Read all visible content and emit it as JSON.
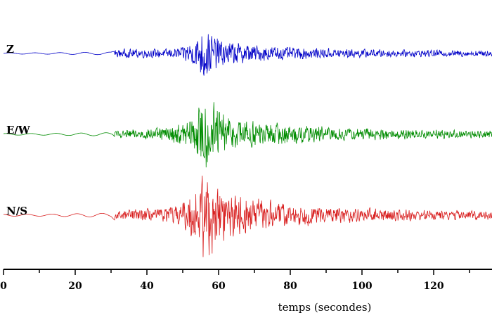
{
  "chart_data": {
    "type": "line",
    "title": "",
    "xlabel": "temps (secondes)",
    "ylabel": "",
    "xlim": [
      0,
      137
    ],
    "xticks": [
      0,
      20,
      40,
      60,
      80,
      100,
      120
    ],
    "grid": false,
    "legend": "none",
    "series": [
      {
        "name": "Z",
        "color": "#0000c8",
        "description": "seismogram trace: quiet until ~31 s, P onset ~31 s, strongest shaking ~53-62 s, coda decaying to ~137 s",
        "x": [
          0,
          10,
          20,
          30,
          31,
          35,
          40,
          45,
          50,
          53,
          55,
          56,
          57,
          58,
          60,
          62,
          65,
          70,
          80,
          90,
          100,
          110,
          120,
          130,
          137
        ],
        "amp": [
          0.02,
          0.02,
          0.03,
          0.04,
          0.12,
          0.14,
          0.15,
          0.14,
          0.22,
          0.45,
          0.75,
          1.0,
          0.85,
          0.6,
          0.5,
          0.4,
          0.35,
          0.28,
          0.2,
          0.17,
          0.14,
          0.12,
          0.11,
          0.1,
          0.1
        ]
      },
      {
        "name": "E/W",
        "color": "#008c00",
        "description": "seismogram trace: quiet until ~31 s, P onset ~31 s, strongest shaking ~53-62 s, coda decaying to ~137 s",
        "x": [
          0,
          10,
          20,
          30,
          31,
          35,
          40,
          45,
          50,
          53,
          55,
          56,
          57,
          58,
          60,
          62,
          65,
          70,
          80,
          90,
          100,
          110,
          120,
          130,
          137
        ],
        "amp": [
          0.02,
          0.02,
          0.03,
          0.04,
          0.1,
          0.12,
          0.14,
          0.18,
          0.3,
          0.5,
          0.8,
          1.0,
          0.95,
          0.85,
          0.7,
          0.55,
          0.45,
          0.35,
          0.26,
          0.2,
          0.17,
          0.14,
          0.12,
          0.1,
          0.1
        ]
      },
      {
        "name": "N/S",
        "color": "#d81e1e",
        "description": "seismogram trace: quiet until ~31 s, P onset ~31 s, strongest shaking ~53-62 s, coda decaying to ~137 s",
        "x": [
          0,
          10,
          20,
          30,
          31,
          35,
          40,
          45,
          50,
          53,
          55,
          56,
          57,
          58,
          60,
          62,
          65,
          70,
          80,
          90,
          100,
          110,
          120,
          130,
          137
        ],
        "amp": [
          0.02,
          0.02,
          0.03,
          0.04,
          0.1,
          0.12,
          0.14,
          0.16,
          0.28,
          0.55,
          0.9,
          1.0,
          0.95,
          0.8,
          0.7,
          0.55,
          0.45,
          0.36,
          0.25,
          0.18,
          0.15,
          0.13,
          0.11,
          0.1,
          0.1
        ]
      }
    ]
  }
}
